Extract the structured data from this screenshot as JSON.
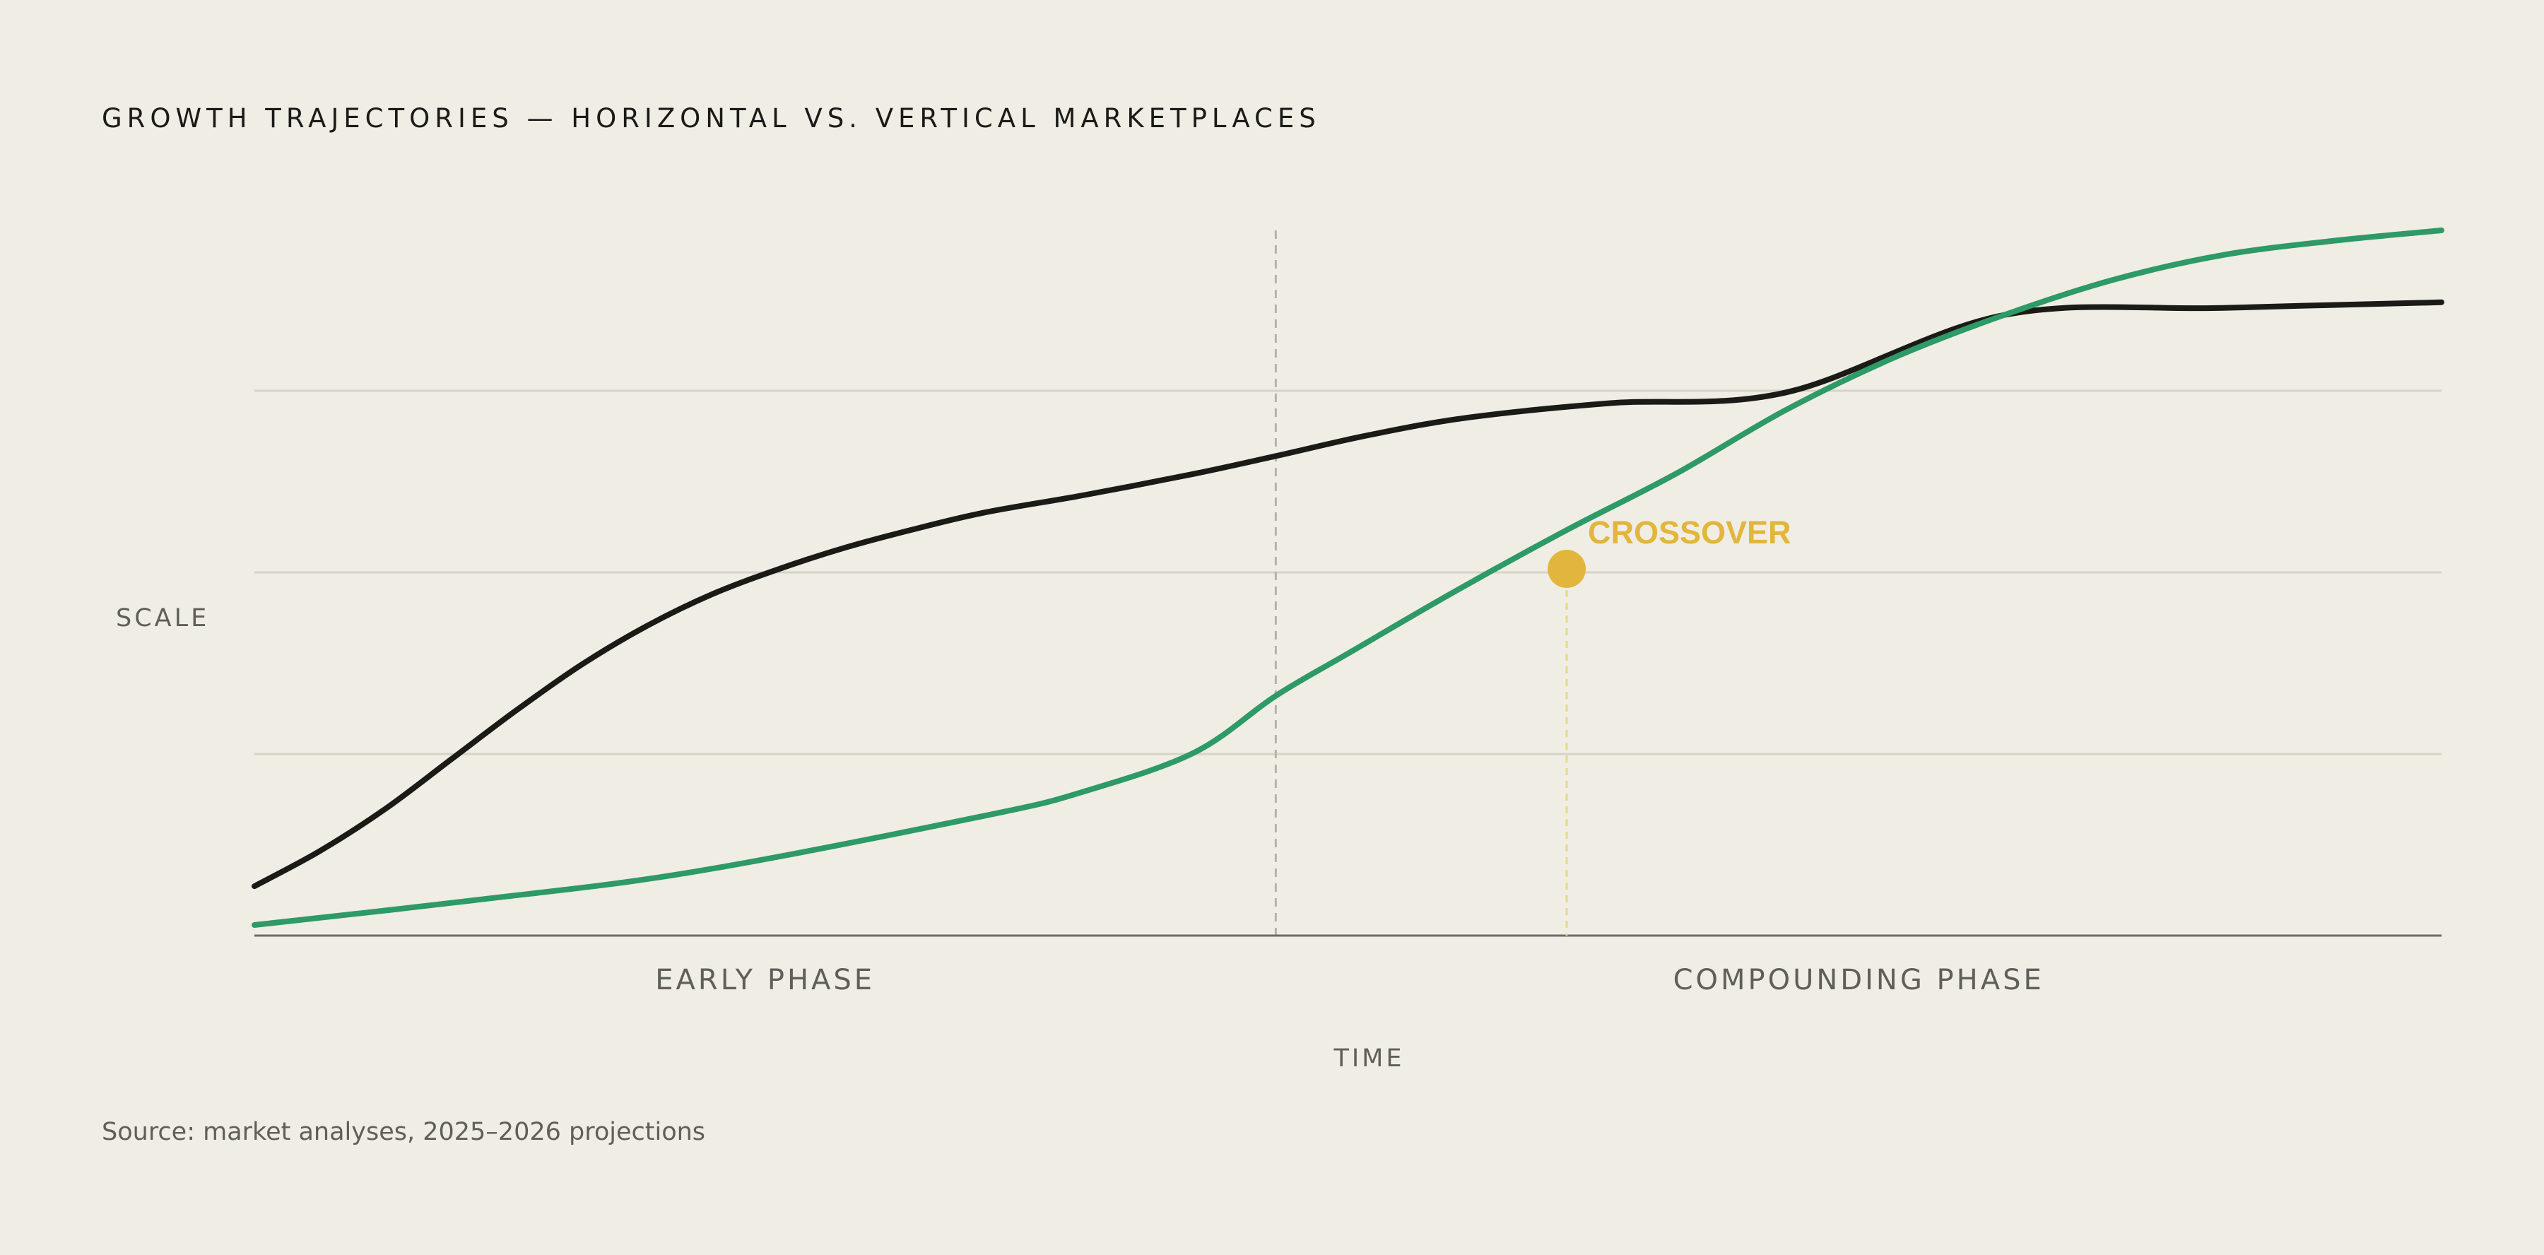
{
  "chart_data": {
    "type": "line",
    "title": "GROWTH TRAJECTORIES — HORIZONTAL VS. VERTICAL MARKETPLACES",
    "xlabel": "TIME",
    "ylabel": "SCALE",
    "xlim": [
      0,
      100
    ],
    "ylim": [
      0,
      100
    ],
    "grid": true,
    "legend": "none",
    "series": [
      {
        "color": "#1a1a17",
        "x": [
          0,
          3,
          6,
          9,
          12,
          15,
          18,
          21,
          24,
          27,
          30,
          33.4,
          38,
          43,
          46.7,
          51,
          55.6,
          62,
          70,
          80,
          90,
          100
        ],
        "y": [
          7,
          12,
          18,
          25,
          32,
          38.5,
          44,
          48.5,
          52,
          55,
          57.5,
          60,
          62.5,
          65.5,
          68,
          71,
          73.5,
          75.5,
          77,
          88,
          89,
          89.8
        ]
      },
      {
        "color": "#2d9a67",
        "x": [
          0,
          10,
          20,
          33.4,
          38,
          43,
          46.7,
          50,
          55,
          60,
          65,
          70,
          75,
          80,
          85,
          90,
          95,
          100
        ],
        "y": [
          1.5,
          5,
          9,
          17,
          20.5,
          26,
          34,
          40,
          49,
          57.5,
          65.5,
          74.5,
          82,
          88,
          93,
          96.5,
          98.5,
          100
        ]
      }
    ],
    "phases": [
      {
        "label": "EARLY PHASE",
        "x_start": 0,
        "x_end": 46.7
      },
      {
        "label": "COMPOUNDING PHASE",
        "x_start": 46.7,
        "x_end": 100
      }
    ],
    "divider_x": 46.7,
    "annotations": [
      {
        "label": "CROSSOVER",
        "x": 60,
        "y": 52,
        "color": "#e2b63c"
      }
    ],
    "gridlines_y": [
      25.75,
      51.5,
      77.25
    ],
    "source": "Source: market analyses, 2025–2026 projections"
  }
}
